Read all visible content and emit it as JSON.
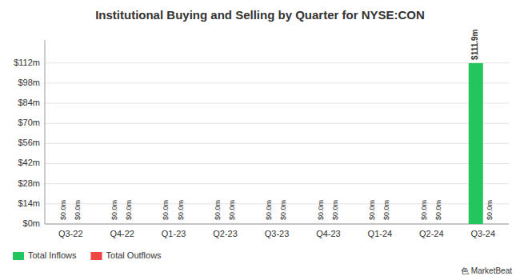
{
  "chart_data": {
    "type": "bar",
    "title": "Institutional Buying and Selling by Quarter for NYSE:CON",
    "categories": [
      "Q3-22",
      "Q4-22",
      "Q1-23",
      "Q2-23",
      "Q3-23",
      "Q4-23",
      "Q1-24",
      "Q2-24",
      "Q3-24"
    ],
    "series": [
      {
        "name": "Total Inflows",
        "color": "#22c55e",
        "values": [
          0.0,
          0.0,
          0.0,
          0.0,
          0.0,
          0.0,
          0.0,
          0.0,
          111.9
        ],
        "value_labels": [
          "$0.0m",
          "$0.0m",
          "$0.0m",
          "$0.0m",
          "$0.0m",
          "$0.0m",
          "$0.0m",
          "$0.0m",
          "$111.9m"
        ]
      },
      {
        "name": "Total Outflows",
        "color": "#ef4444",
        "values": [
          0.0,
          0.0,
          0.0,
          0.0,
          0.0,
          0.0,
          0.0,
          0.0,
          0.0
        ],
        "value_labels": [
          "$0.0m",
          "$0.0m",
          "$0.0m",
          "$0.0m",
          "$0.0m",
          "$0.0m",
          "$0.0m",
          "$0.0m",
          "$0.0m"
        ]
      }
    ],
    "ylim": [
      0,
      128
    ],
    "yticks": [
      {
        "value": 0,
        "label": "$0m"
      },
      {
        "value": 14,
        "label": "$14m"
      },
      {
        "value": 28,
        "label": "$28m"
      },
      {
        "value": 42,
        "label": "$42m"
      },
      {
        "value": 56,
        "label": "$56m"
      },
      {
        "value": 70,
        "label": "$70m"
      },
      {
        "value": 84,
        "label": "$84m"
      },
      {
        "value": 98,
        "label": "$98m"
      },
      {
        "value": 112,
        "label": "$112m"
      }
    ],
    "grid": true,
    "legend": "lower left",
    "data_labels": true,
    "annotations": [
      "⾊ MarketBeat"
    ]
  }
}
